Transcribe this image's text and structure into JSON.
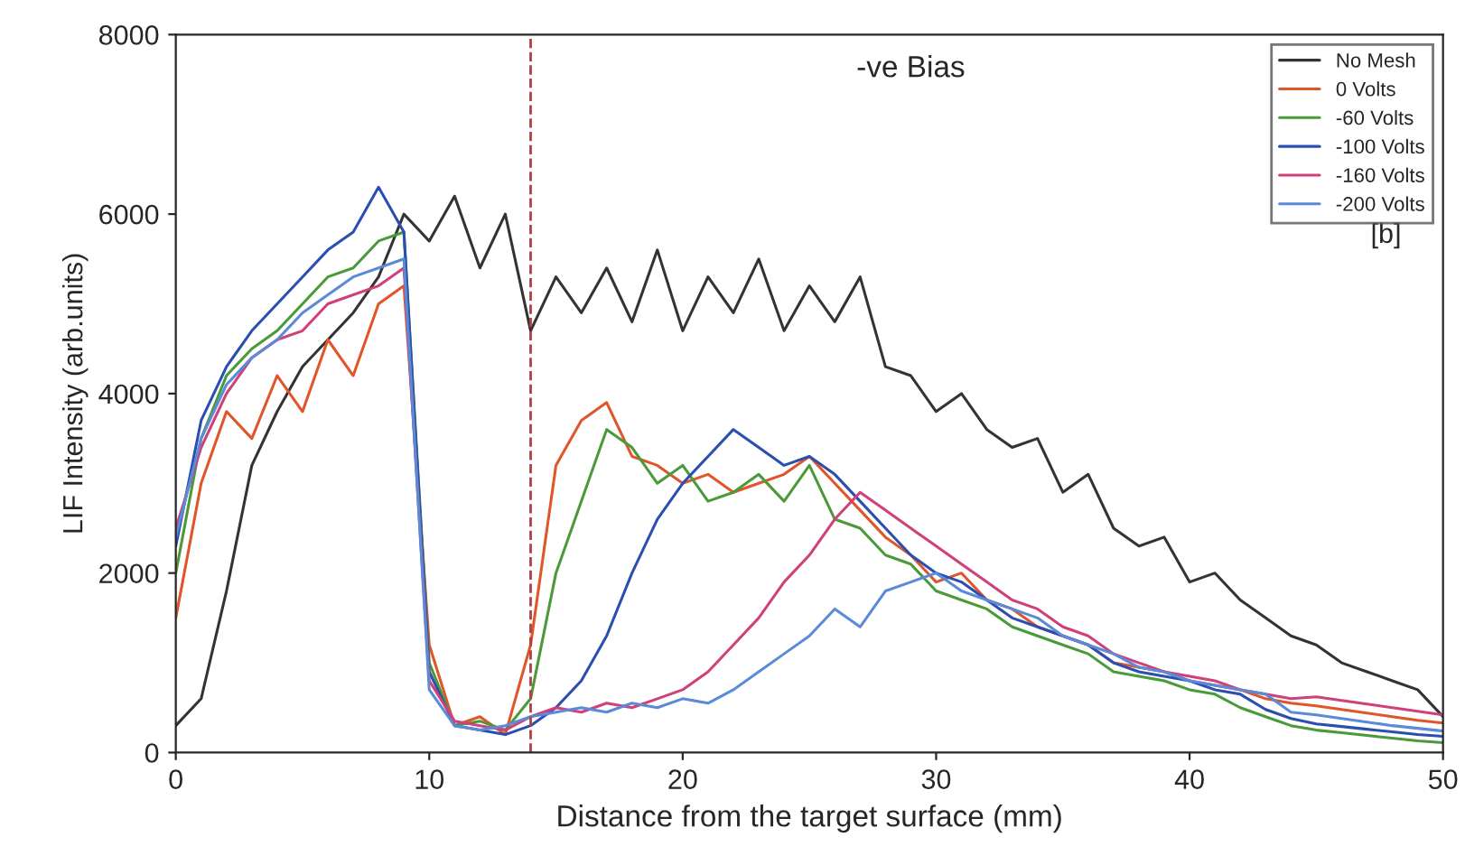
{
  "chart_data": {
    "type": "line",
    "title": "-ve Bias",
    "xlabel": "Distance from the target surface (mm)",
    "ylabel": "LIF Intensity (arb.units)",
    "annotations": [
      "[b]"
    ],
    "x": [
      0,
      1,
      2,
      3,
      4,
      5,
      6,
      7,
      8,
      9,
      10,
      11,
      12,
      13,
      14,
      15,
      16,
      17,
      18,
      19,
      20,
      21,
      22,
      23,
      24,
      25,
      26,
      27,
      28,
      29,
      30,
      31,
      32,
      33,
      34,
      35,
      36,
      37,
      38,
      39,
      40,
      41,
      42,
      43,
      44,
      45,
      46,
      47,
      48,
      49,
      50
    ],
    "series": [
      {
        "name": "No Mesh",
        "color": "#333333",
        "values": [
          300,
          600,
          1800,
          3200,
          3800,
          4300,
          4600,
          4900,
          5300,
          6000,
          5700,
          6200,
          5400,
          6000,
          4700,
          5300,
          4900,
          5400,
          4800,
          5600,
          4700,
          5300,
          4900,
          5500,
          4700,
          5200,
          4800,
          5300,
          4300,
          4200,
          3800,
          4000,
          3600,
          3400,
          3500,
          2900,
          3100,
          2500,
          2300,
          2400,
          1900,
          2000,
          1700,
          1500,
          1300,
          1200,
          1000,
          900,
          800,
          700,
          400
        ]
      },
      {
        "name": "0 Volts",
        "color": "#e0552a",
        "values": [
          1500,
          3000,
          3800,
          3500,
          4200,
          3800,
          4600,
          4200,
          5000,
          5200,
          1200,
          300,
          400,
          200,
          1200,
          3200,
          3700,
          3900,
          3300,
          3200,
          3000,
          3100,
          2900,
          3000,
          3100,
          3300,
          3000,
          2700,
          2400,
          2200,
          1900,
          2000,
          1700,
          1600,
          1400,
          1300,
          1200,
          1000,
          950,
          900,
          800,
          750,
          700,
          600,
          550,
          520,
          480,
          440,
          400,
          360,
          330
        ]
      },
      {
        "name": "-60 Volts",
        "color": "#4a9a3a",
        "values": [
          2000,
          3500,
          4200,
          4500,
          4700,
          5000,
          5300,
          5400,
          5700,
          5800,
          1000,
          300,
          350,
          250,
          600,
          2000,
          2800,
          3600,
          3400,
          3000,
          3200,
          2800,
          2900,
          3100,
          2800,
          3200,
          2600,
          2500,
          2200,
          2100,
          1800,
          1700,
          1600,
          1400,
          1300,
          1200,
          1100,
          900,
          850,
          800,
          700,
          650,
          500,
          400,
          300,
          250,
          220,
          190,
          160,
          130,
          110
        ]
      },
      {
        "name": "-100 Volts",
        "color": "#2a4fb0",
        "values": [
          2300,
          3700,
          4300,
          4700,
          5000,
          5300,
          5600,
          5800,
          6300,
          5800,
          900,
          300,
          250,
          200,
          300,
          500,
          800,
          1300,
          2000,
          2600,
          3000,
          3300,
          3600,
          3400,
          3200,
          3300,
          3100,
          2800,
          2500,
          2200,
          2000,
          1900,
          1700,
          1500,
          1400,
          1300,
          1200,
          1000,
          900,
          850,
          800,
          700,
          650,
          480,
          380,
          320,
          290,
          260,
          230,
          200,
          180
        ]
      },
      {
        "name": "-160 Volts",
        "color": "#d0407a",
        "values": [
          2500,
          3400,
          4000,
          4400,
          4600,
          4700,
          5000,
          5100,
          5200,
          5400,
          800,
          350,
          300,
          250,
          400,
          500,
          450,
          550,
          500,
          600,
          700,
          900,
          1200,
          1500,
          1900,
          2200,
          2600,
          2900,
          2700,
          2500,
          2300,
          2100,
          1900,
          1700,
          1600,
          1400,
          1300,
          1100,
          1000,
          900,
          850,
          800,
          700,
          650,
          600,
          620,
          580,
          540,
          500,
          460,
          420
        ]
      },
      {
        "name": "-200 Volts",
        "color": "#5a8ad8",
        "values": [
          2400,
          3500,
          4100,
          4400,
          4600,
          4900,
          5100,
          5300,
          5400,
          5500,
          700,
          300,
          250,
          300,
          400,
          450,
          500,
          450,
          550,
          500,
          600,
          550,
          700,
          900,
          1100,
          1300,
          1600,
          1400,
          1800,
          1900,
          2000,
          1800,
          1700,
          1600,
          1500,
          1300,
          1200,
          1100,
          950,
          900,
          800,
          750,
          700,
          650,
          450,
          420,
          380,
          340,
          300,
          270,
          240
        ]
      }
    ],
    "ref_lines": [
      {
        "axis": "x",
        "value": 14,
        "color": "#b04040",
        "line_style": "dashed"
      }
    ],
    "xlim": [
      0,
      50
    ],
    "xticks": [
      0,
      10,
      20,
      30,
      40,
      50
    ],
    "ylim": [
      0,
      8000
    ],
    "yticks": [
      0,
      2000,
      4000,
      6000,
      8000
    ],
    "grid": false,
    "legend": "top right",
    "marker": "none",
    "line_style": "solid"
  }
}
